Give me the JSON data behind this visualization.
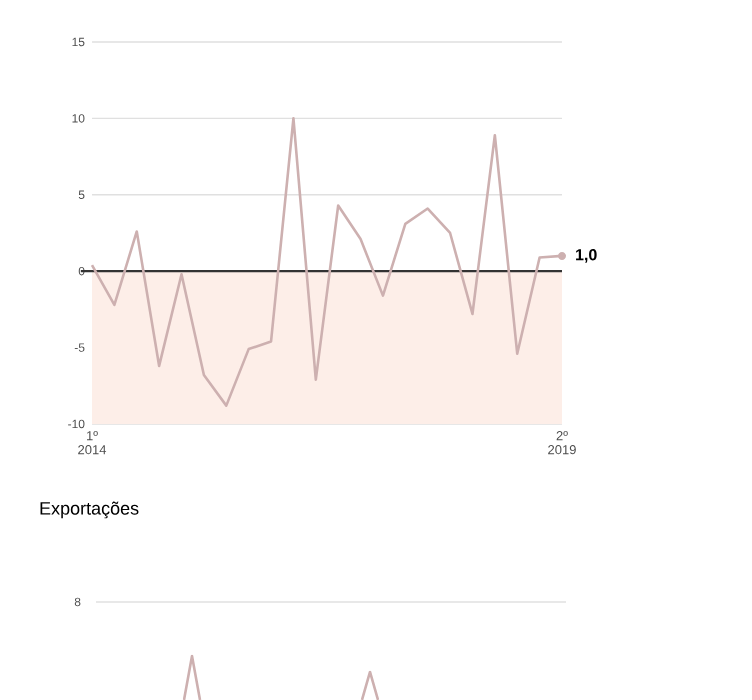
{
  "chart_data": [
    {
      "type": "line",
      "categories": [
        "1º 2014",
        null,
        null,
        null,
        null,
        null,
        null,
        null,
        null,
        null,
        null,
        null,
        null,
        null,
        null,
        null,
        null,
        null,
        null,
        null,
        null,
        "2º 2019"
      ],
      "series": [
        {
          "color": "#cdb0b0",
          "values": [
            0.4,
            -2.2,
            2.6,
            -6.2,
            -0.2,
            -6.8,
            -8.8,
            -5.1,
            -4.6,
            10.0,
            -7.1,
            4.3,
            2.1,
            -1.6,
            3.1,
            4.1,
            2.5,
            -2.8,
            8.9,
            -5.4,
            0.9,
            1.0
          ],
          "value_labels": [
            null,
            null,
            null,
            null,
            null,
            null,
            null,
            null,
            null,
            null,
            null,
            null,
            null,
            null,
            null,
            null,
            null,
            null,
            null,
            null,
            null,
            "1,0"
          ]
        }
      ],
      "ylim": [
        -10,
        15
      ],
      "yticks": [
        -10,
        -5,
        0,
        5,
        10,
        15
      ],
      "grid": "y",
      "ref_lines": [
        {
          "axis": "y",
          "value": 0,
          "color": "#333333"
        }
      ],
      "bands": [
        {
          "axis": "y",
          "from": -10,
          "to": 0,
          "color": "#fdeee8"
        }
      ]
    },
    {
      "type": "other",
      "title": "Exportações",
      "annotations": [
        "8"
      ]
    }
  ]
}
